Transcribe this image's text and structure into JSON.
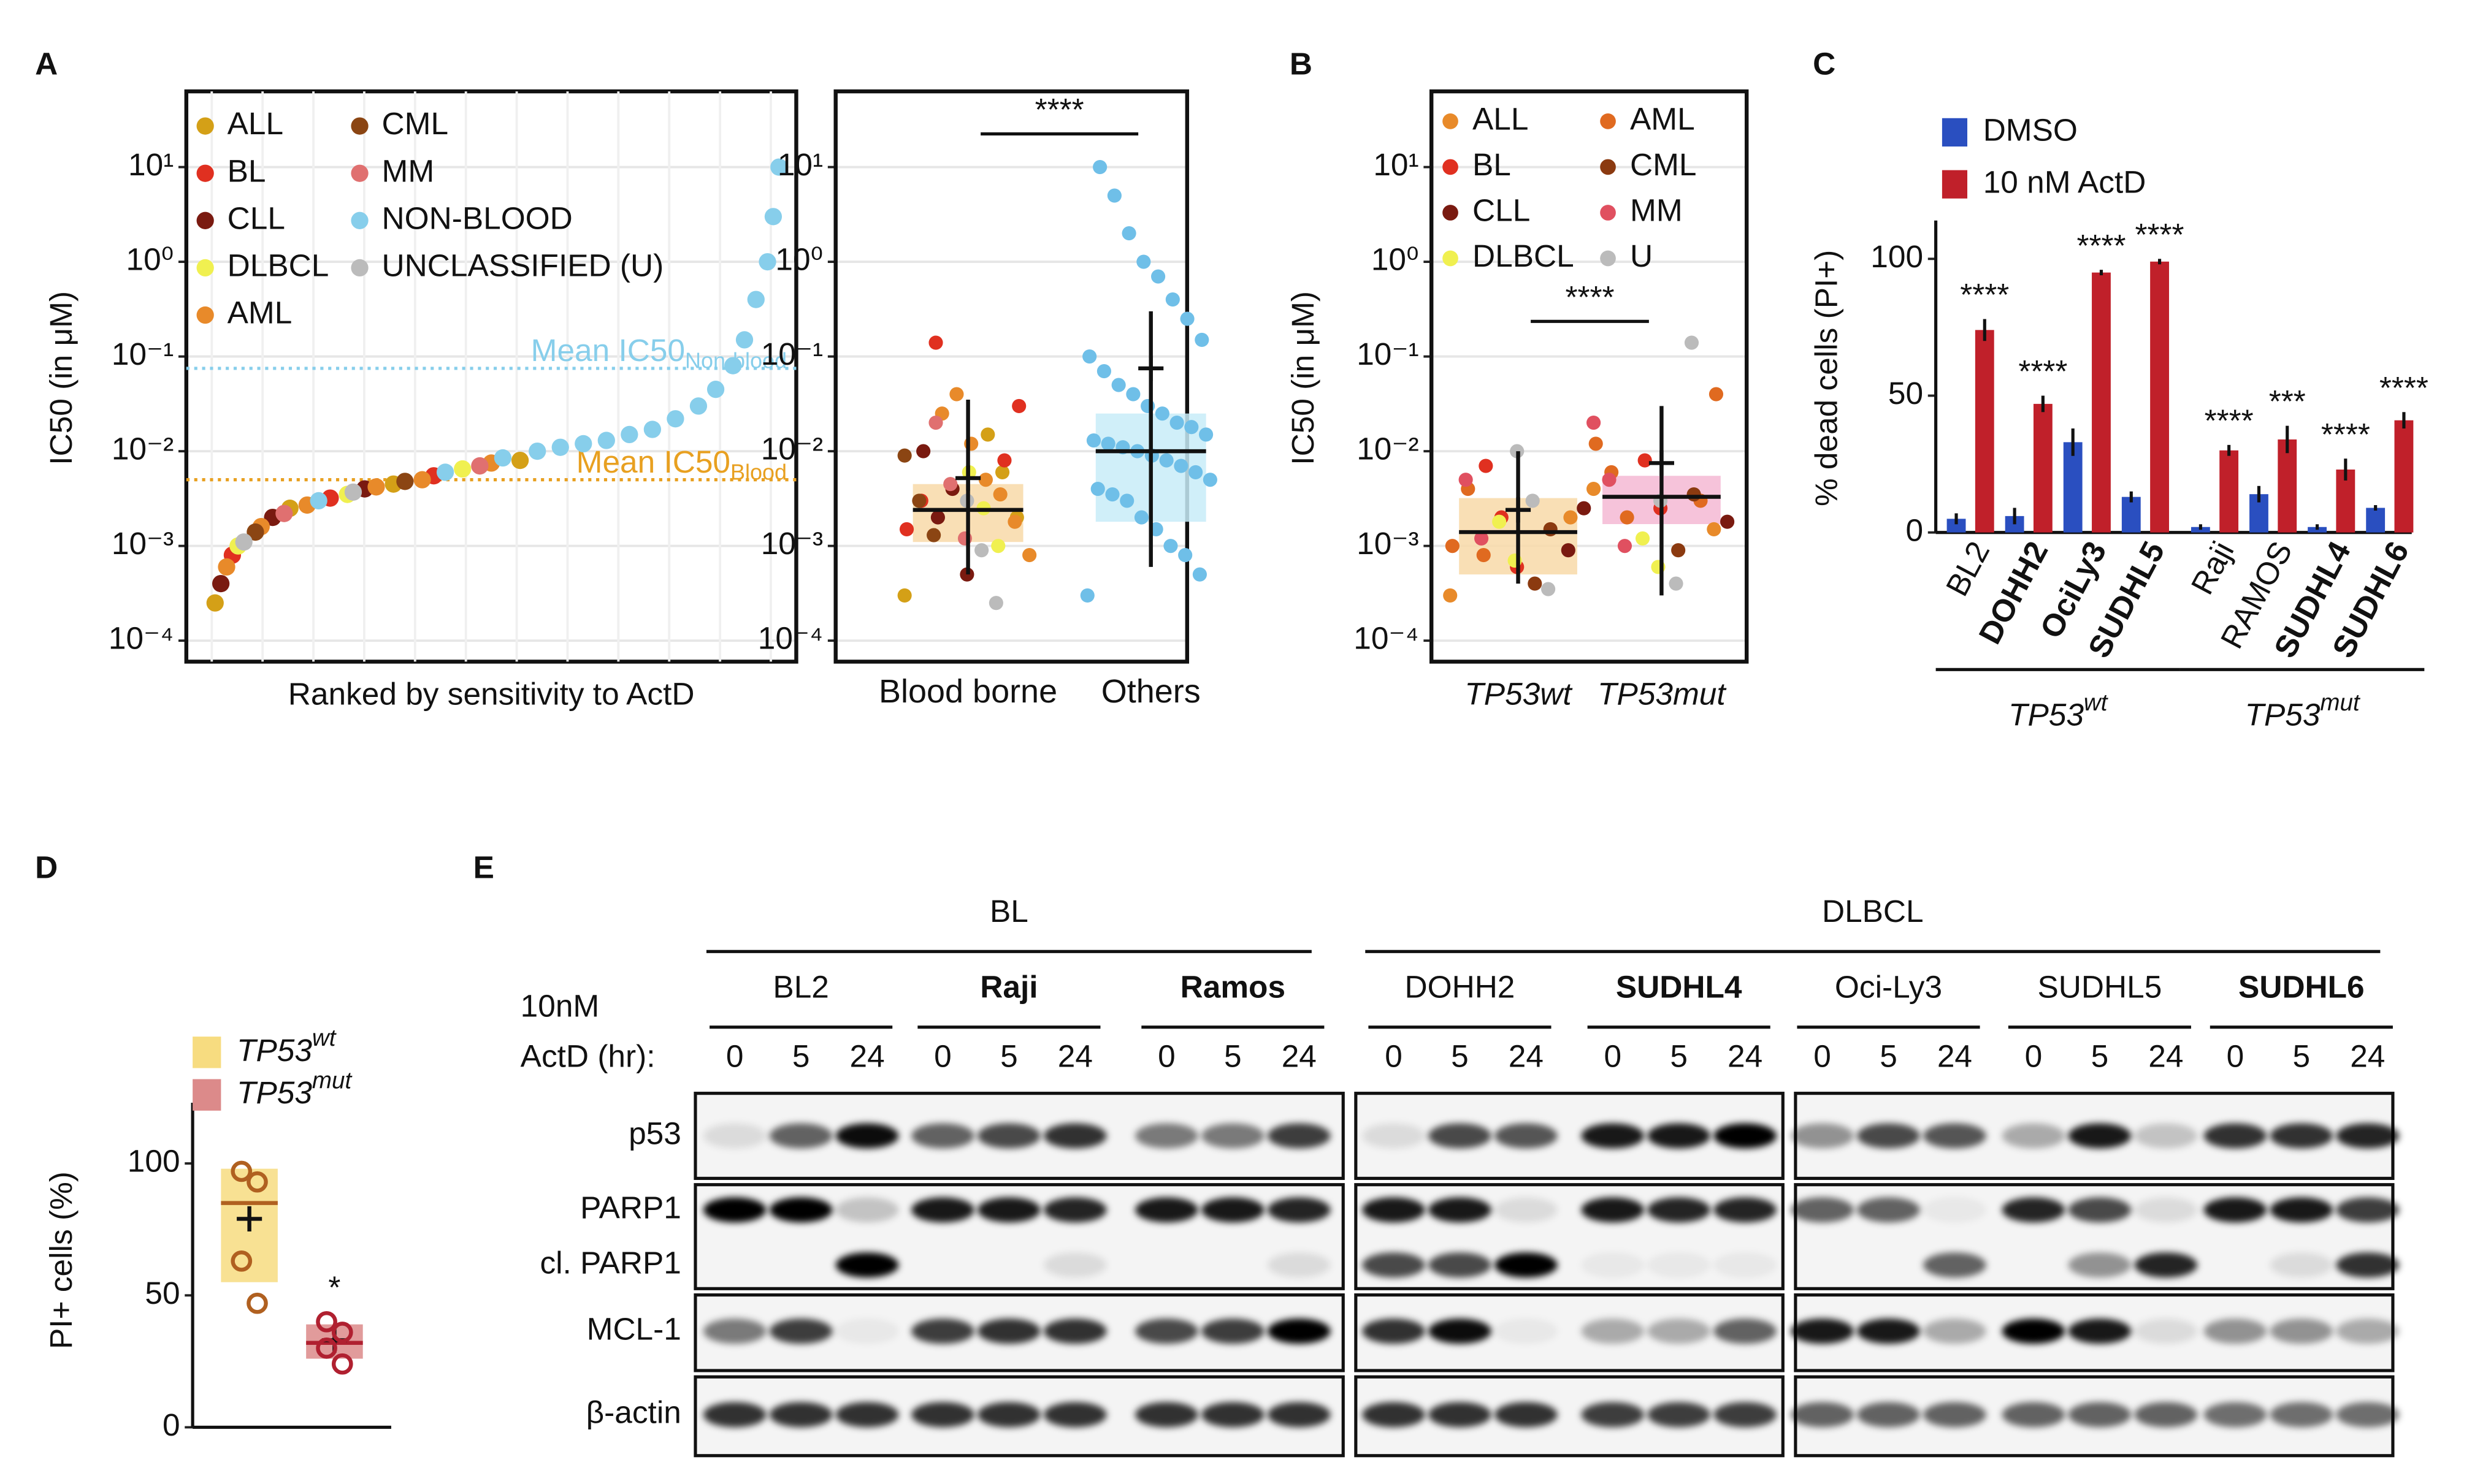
{
  "panel_labels": [
    "A",
    "B",
    "C",
    "D",
    "E"
  ],
  "chart_data": [
    {
      "type": "scatter",
      "ylabel": "IC50 (in μM)",
      "xlabel": "Ranked by sensitivity to ActD",
      "log": true,
      "grid": true,
      "xlim": [
        -3,
        103
      ],
      "ylim": [
        6e-05,
        63
      ],
      "yticks": [
        {
          "value": 0.0001,
          "label": "10⁻⁴"
        },
        {
          "value": 0.001,
          "label": "10⁻³"
        },
        {
          "value": 0.01,
          "label": "10⁻²"
        },
        {
          "value": 0.1,
          "label": "10⁻¹"
        },
        {
          "value": 1,
          "label": "10⁰"
        },
        {
          "value": 10,
          "label": "10¹"
        }
      ],
      "series": [
        {
          "name": "ALL",
          "color": "#d4a017",
          "x": [
            2,
            15,
            33,
            55
          ],
          "values": [
            0.00025,
            0.0025,
            0.0045,
            0.008
          ]
        },
        {
          "name": "BL",
          "color": "#e03020",
          "x": [
            5,
            22,
            40
          ],
          "values": [
            0.0008,
            0.0032,
            0.0055
          ]
        },
        {
          "name": "CLL",
          "color": "#7a1a10",
          "x": [
            3,
            12,
            28
          ],
          "values": [
            0.0004,
            0.002,
            0.004
          ]
        },
        {
          "name": "DLBCL",
          "color": "#f0f050",
          "x": [
            6,
            25,
            45
          ],
          "values": [
            0.001,
            0.0035,
            0.0065
          ]
        },
        {
          "name": "AML",
          "color": "#e88a2a",
          "x": [
            4,
            10,
            18,
            30,
            38,
            50
          ],
          "values": [
            0.0006,
            0.0016,
            0.0027,
            0.0042,
            0.005,
            0.0075
          ]
        },
        {
          "name": "CML",
          "color": "#8b4513",
          "x": [
            9,
            35
          ],
          "values": [
            0.0014,
            0.0048
          ]
        },
        {
          "name": "MM",
          "color": "#e07070",
          "x": [
            14,
            48
          ],
          "values": [
            0.0022,
            0.007
          ]
        },
        {
          "name": "NON-BLOOD",
          "color": "#87ceeb",
          "x": [
            20,
            42,
            52,
            58,
            62,
            66,
            70,
            74,
            78,
            82,
            86,
            89,
            92,
            94,
            96,
            98,
            99,
            100
          ],
          "values": [
            0.003,
            0.006,
            0.0085,
            0.01,
            0.011,
            0.012,
            0.013,
            0.015,
            0.017,
            0.022,
            0.03,
            0.045,
            0.08,
            0.15,
            0.4,
            1,
            3,
            10
          ]
        },
        {
          "name": "UNCLASSIFIED (U)",
          "color": "#bbbbbb",
          "x": [
            7,
            26
          ],
          "values": [
            0.0011,
            0.0037
          ]
        }
      ],
      "mean_lines": [
        {
          "label": "Mean IC50",
          "sub": "Non-blood",
          "value": 0.075,
          "color": "#87ceeb"
        },
        {
          "label": "Mean IC50",
          "sub": "Blood",
          "value": 0.005,
          "color": "#e8a020"
        }
      ]
    },
    {
      "type": "box",
      "log": true,
      "grid": true,
      "ylim": [
        6e-05,
        63
      ],
      "yticks": [
        {
          "value": 0.0001,
          "label": "10⁻⁴"
        },
        {
          "value": 0.001,
          "label": "10⁻³"
        },
        {
          "value": 0.01,
          "label": "10⁻²"
        },
        {
          "value": 0.1,
          "label": "10⁻¹"
        },
        {
          "value": 1,
          "label": "10⁰"
        },
        {
          "value": 10,
          "label": "10¹"
        }
      ],
      "categories": [
        "Blood borne",
        "Others"
      ],
      "significance": "****",
      "boxes": [
        {
          "box": [
            0.0011,
            0.0024,
            0.0045
          ],
          "mean": 0.0052,
          "whisker": [
            0.0005,
            0.035
          ],
          "color": "#f8d9a8"
        },
        {
          "box": [
            0.0018,
            0.01,
            0.025
          ],
          "mean": 0.075,
          "whisker": [
            0.0006,
            0.3
          ],
          "color": "#c8ecf8"
        }
      ],
      "points": [
        [
          {
            "color": "#d4a017",
            "values": [
              0.0003,
              0.002,
              0.006,
              0.015
            ]
          },
          {
            "color": "#e03020",
            "values": [
              0.14,
              0.003,
              0.0015,
              0.03,
              0.008
            ]
          },
          {
            "color": "#7a1a10",
            "values": [
              0.0005,
              0.004,
              0.002,
              0.01
            ]
          },
          {
            "color": "#f0f050",
            "values": [
              0.001,
              0.0025,
              0.006
            ]
          },
          {
            "color": "#e88a2a",
            "values": [
              0.0008,
              0.0018,
              0.0035,
              0.005,
              0.012,
              0.04,
              0.025
            ]
          },
          {
            "color": "#8b4513",
            "values": [
              0.0013,
              0.003,
              0.009
            ]
          },
          {
            "color": "#e07070",
            "values": [
              0.0012,
              0.0045,
              0.02
            ]
          },
          {
            "color": "#bbbbbb",
            "values": [
              0.00025,
              0.0009,
              0.003
            ]
          }
        ],
        [
          {
            "color": "#6fbfe8",
            "values": [
              0.0003,
              0.0005,
              0.0008,
              0.001,
              0.0015,
              0.002,
              0.003,
              0.0035,
              0.004,
              0.005,
              0.006,
              0.007,
              0.008,
              0.009,
              0.01,
              0.011,
              0.012,
              0.013,
              0.015,
              0.018,
              0.02,
              0.025,
              0.03,
              0.04,
              0.05,
              0.07,
              0.1,
              0.15,
              0.25,
              0.4,
              0.7,
              1,
              2,
              5,
              10
            ]
          }
        ]
      ]
    },
    {
      "type": "box",
      "log": true,
      "grid": true,
      "ylabel": "IC50 (in μM)",
      "ylim": [
        6e-05,
        63
      ],
      "yticks": [
        {
          "value": 0.0001,
          "label": "10⁻⁴"
        },
        {
          "value": 0.001,
          "label": "10⁻³"
        },
        {
          "value": 0.01,
          "label": "10⁻²"
        },
        {
          "value": 0.1,
          "label": "10⁻¹"
        },
        {
          "value": 1,
          "label": "10⁰"
        },
        {
          "value": 10,
          "label": "10¹"
        }
      ],
      "categories": [
        "TP53wt",
        "TP53mut"
      ],
      "significance": "****",
      "legend": [
        {
          "name": "ALL",
          "color": "#e88a2a"
        },
        {
          "name": "AML",
          "color": "#e06a20"
        },
        {
          "name": "BL",
          "color": "#e03020"
        },
        {
          "name": "CML",
          "color": "#8b3a10"
        },
        {
          "name": "CLL",
          "color": "#7a1a10"
        },
        {
          "name": "MM",
          "color": "#e05060"
        },
        {
          "name": "DLBCL",
          "color": "#f0f050"
        },
        {
          "name": "U",
          "color": "#bbbbbb"
        }
      ],
      "boxes": [
        {
          "box": [
            0.0005,
            0.0014,
            0.0032
          ],
          "mean": 0.0024,
          "whisker": [
            0.0004,
            0.01
          ],
          "color": "#f8d9a8"
        },
        {
          "box": [
            0.0017,
            0.0033,
            0.0055
          ],
          "mean": 0.0075,
          "whisker": [
            0.0003,
            0.03
          ],
          "color": "#f4b8d4"
        }
      ],
      "points": [
        [
          {
            "color": "#e88a2a",
            "values": [
              0.0003,
              0.002
            ]
          },
          {
            "color": "#e06a20",
            "values": [
              0.0008,
              0.004,
              0.001
            ]
          },
          {
            "color": "#e03020",
            "values": [
              0.0006,
              0.002,
              0.007
            ]
          },
          {
            "color": "#8b3a10",
            "values": [
              0.0015,
              0.0004
            ]
          },
          {
            "color": "#7a1a10",
            "values": [
              0.0025,
              0.0009
            ]
          },
          {
            "color": "#e05060",
            "values": [
              0.0012,
              0.005
            ]
          },
          {
            "color": "#f0f050",
            "values": [
              0.0007,
              0.0018
            ]
          },
          {
            "color": "#bbbbbb",
            "values": [
              0.00035,
              0.003,
              0.01
            ]
          }
        ],
        [
          {
            "color": "#e88a2a",
            "values": [
              0.004,
              0.0015
            ]
          },
          {
            "color": "#e06a20",
            "values": [
              0.002,
              0.006,
              0.012,
              0.04,
              0.003
            ]
          },
          {
            "color": "#e03020",
            "values": [
              0.0025,
              0.008
            ]
          },
          {
            "color": "#8b3a10",
            "values": [
              0.0035,
              0.0009
            ]
          },
          {
            "color": "#7a1a10",
            "values": [
              0.0018
            ]
          },
          {
            "color": "#e05060",
            "values": [
              0.001,
              0.005,
              0.02
            ]
          },
          {
            "color": "#f0f050",
            "values": [
              0.0006,
              0.0012
            ]
          },
          {
            "color": "#bbbbbb",
            "values": [
              0.14,
              0.0004,
              0.003
            ]
          }
        ]
      ]
    },
    {
      "type": "bar",
      "ylabel": "% dead cells (PI+)",
      "ylim": [
        0,
        114
      ],
      "yticks": [
        0,
        50,
        100
      ],
      "categories": [
        "BL2",
        "DOHH2",
        "OciLy3",
        "SUDHL5",
        "Raji",
        "RAMOS",
        "SUDHL4",
        "SUDHL6"
      ],
      "bold": [
        false,
        true,
        true,
        true,
        false,
        false,
        true,
        true
      ],
      "series": [
        {
          "name": "DMSO",
          "color": "#2a4fc0",
          "values": [
            5,
            6,
            33,
            13,
            2,
            14,
            2,
            9
          ],
          "errors": [
            2,
            3,
            5,
            2,
            1,
            3,
            1,
            1
          ]
        },
        {
          "name": "10 nM ActD",
          "color": "#c0202a",
          "values": [
            74,
            47,
            95,
            99,
            30,
            34,
            23,
            41
          ],
          "errors": [
            4,
            3,
            1,
            1,
            2,
            5,
            4,
            3
          ]
        }
      ],
      "significance": [
        "****",
        "****",
        "****",
        "****",
        "****",
        "***",
        "****",
        "****"
      ],
      "groups": [
        {
          "label": "TP53",
          "sup": "wt"
        },
        {
          "label": "TP53",
          "sup": "mut"
        }
      ]
    },
    {
      "type": "box",
      "ylabel": "PI+ cells (%)",
      "ylim": [
        0,
        123
      ],
      "yticks": [
        0,
        50,
        100
      ],
      "significance_marker": "*",
      "boxes": [
        {
          "name": "TP53",
          "sup": "wt",
          "box": [
            55,
            85,
            98
          ],
          "mean": 79,
          "color": "#f7dc80",
          "point_color": "#b06020",
          "values": [
            97,
            93,
            63,
            47
          ]
        },
        {
          "name": "TP53",
          "sup": "mut",
          "box": [
            26,
            32,
            39
          ],
          "mean": 33,
          "color": "#dc8a8a",
          "point_color": "#b02030",
          "values": [
            40,
            36,
            30,
            24
          ]
        }
      ]
    }
  ],
  "blot": {
    "groups": [
      {
        "label": "BL"
      },
      {
        "label": "DLBCL"
      }
    ],
    "treatment": "10nM",
    "time_label": "ActD (hr):",
    "times": [
      "0",
      "5",
      "24"
    ],
    "cell_lines": [
      {
        "label": "BL2",
        "highlight": false
      },
      {
        "label": "Raji",
        "highlight": true
      },
      {
        "label": "Ramos",
        "highlight": true
      },
      {
        "label": "DOHH2",
        "highlight": false
      },
      {
        "label": "SUDHL4",
        "highlight": true
      },
      {
        "label": "Oci-Ly3",
        "highlight": false
      },
      {
        "label": "SUDHL5",
        "highlight": false
      },
      {
        "label": "SUDHL6",
        "highlight": true
      }
    ],
    "rows": [
      {
        "label": "p53",
        "intensity": [
          0.1,
          0.6,
          0.95,
          0.6,
          0.7,
          0.8,
          0.5,
          0.5,
          0.75,
          0.1,
          0.7,
          0.65,
          0.9,
          0.9,
          1,
          0.4,
          0.7,
          0.65,
          0.3,
          0.9,
          0.2,
          0.8,
          0.8,
          0.85
        ]
      },
      {
        "label": "PARP1",
        "intensity": [
          1,
          1,
          0.2,
          0.9,
          0.9,
          0.85,
          0.9,
          0.9,
          0.85,
          0.9,
          0.9,
          0.1,
          0.9,
          0.85,
          0.85,
          0.6,
          0.6,
          0.05,
          0.85,
          0.7,
          0.1,
          0.9,
          0.9,
          0.75
        ]
      },
      {
        "label": "cl. PARP1",
        "intensity": [
          0,
          0,
          1,
          0,
          0,
          0.1,
          0,
          0,
          0.1,
          0.7,
          0.7,
          1,
          0.05,
          0.05,
          0.05,
          0,
          0,
          0.6,
          0,
          0.4,
          0.85,
          0,
          0.1,
          0.8
        ]
      },
      {
        "label": "MCL-1",
        "intensity": [
          0.5,
          0.75,
          0.05,
          0.75,
          0.8,
          0.8,
          0.7,
          0.75,
          1,
          0.8,
          0.95,
          0.05,
          0.3,
          0.3,
          0.6,
          0.9,
          0.9,
          0.3,
          1,
          0.9,
          0.1,
          0.4,
          0.4,
          0.3
        ]
      },
      {
        "label": "β-actin",
        "intensity": [
          0.8,
          0.8,
          0.8,
          0.8,
          0.8,
          0.8,
          0.8,
          0.8,
          0.8,
          0.8,
          0.8,
          0.8,
          0.75,
          0.75,
          0.75,
          0.6,
          0.6,
          0.6,
          0.6,
          0.6,
          0.6,
          0.55,
          0.55,
          0.55
        ]
      }
    ]
  }
}
